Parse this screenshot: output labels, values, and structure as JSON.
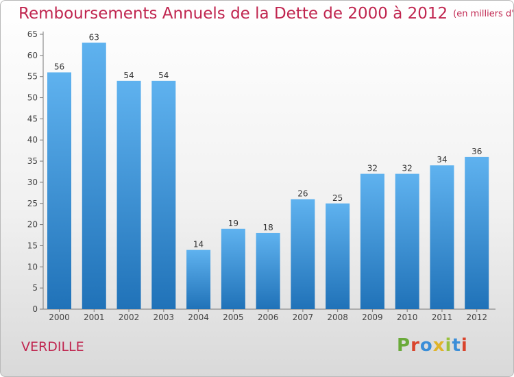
{
  "title": "Remboursements Annuels de la Dette de 2000 à 2012",
  "unit_label": "(en milliers d'€)",
  "city": "VERDILLE",
  "logo": {
    "text": "Proxiti",
    "colors": [
      "#6aaa3a",
      "#d9442c",
      "#3b8ed8",
      "#e0b42a",
      "#9ac13e",
      "#3b8ed8",
      "#d9442c"
    ]
  },
  "colors": {
    "title": "#c0254f",
    "bar_top": "#5fb2ef",
    "bar_bottom": "#2072b8"
  },
  "chart_data": {
    "type": "bar",
    "title": "Remboursements Annuels de la Dette de 2000 à 2012",
    "xlabel": "",
    "ylabel": "",
    "categories": [
      "2000",
      "2001",
      "2002",
      "2003",
      "2004",
      "2005",
      "2006",
      "2007",
      "2008",
      "2009",
      "2010",
      "2011",
      "2012"
    ],
    "values": [
      56,
      63,
      54,
      54,
      14,
      19,
      18,
      26,
      25,
      32,
      32,
      34,
      36
    ],
    "ylim": [
      0,
      65
    ],
    "yticks": [
      0,
      5,
      10,
      15,
      20,
      25,
      30,
      35,
      40,
      45,
      50,
      55,
      60,
      65
    ],
    "grid": false,
    "legend": "none"
  }
}
